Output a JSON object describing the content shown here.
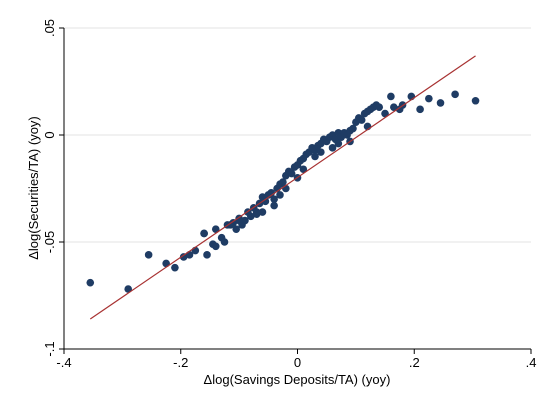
{
  "chart_data": {
    "type": "scatter",
    "xlabel": "Δlog(Savings Deposits/TA) (yoy)",
    "ylabel": "Δlog(Securities/TA) (yoy)",
    "xlim": [
      -0.4,
      0.4
    ],
    "ylim": [
      -0.1,
      0.05
    ],
    "x_ticks": [
      -0.4,
      -0.2,
      0,
      0.2,
      0.4
    ],
    "x_tick_labels": [
      "-.4",
      "-.2",
      "0",
      ".2",
      ".4"
    ],
    "y_ticks": [
      -0.1,
      -0.05,
      0,
      0.05
    ],
    "y_tick_labels": [
      "-.1",
      "-.05",
      "0",
      ".05"
    ],
    "grid": "horizontal",
    "colors": {
      "points": "#1f3c64",
      "fit_line": "#a83232",
      "grid": "#e3e3e3"
    },
    "fit_line": {
      "x": [
        -0.355,
        0.305
      ],
      "y": [
        -0.086,
        0.037
      ]
    },
    "series": [
      {
        "x": [
          -0.355,
          -0.29,
          -0.255,
          -0.225,
          -0.21,
          -0.195,
          -0.185,
          -0.175,
          -0.16,
          -0.155,
          -0.145,
          -0.14,
          -0.13,
          -0.125,
          -0.12,
          -0.115,
          -0.11,
          -0.105,
          -0.1,
          -0.095,
          -0.09,
          -0.085,
          -0.08,
          -0.075,
          -0.07,
          -0.065,
          -0.06,
          -0.055,
          -0.05,
          -0.045,
          -0.04,
          -0.035,
          -0.03,
          -0.025,
          -0.02,
          -0.015,
          -0.01,
          -0.005,
          0.0,
          0.005,
          0.01,
          0.015,
          0.02,
          0.025,
          0.03,
          0.035,
          0.04,
          0.045,
          0.05,
          0.055,
          0.06,
          0.065,
          0.07,
          0.075,
          0.08,
          0.085,
          0.09,
          0.095,
          0.1,
          0.105,
          0.11,
          0.115,
          0.12,
          0.125,
          0.13,
          0.135,
          0.14,
          0.15,
          0.16,
          0.165,
          0.175,
          0.18,
          0.195,
          0.21,
          0.225,
          0.245,
          0.27,
          0.305,
          -0.16,
          -0.14,
          -0.1,
          -0.07,
          -0.04,
          -0.02,
          0.0,
          0.03,
          0.06,
          0.09,
          0.12,
          -0.06,
          -0.03,
          0.01,
          0.04,
          0.07
        ],
        "y": [
          -0.069,
          -0.072,
          -0.056,
          -0.06,
          -0.062,
          -0.057,
          -0.056,
          -0.054,
          -0.046,
          -0.056,
          -0.051,
          -0.044,
          -0.048,
          -0.05,
          -0.042,
          -0.042,
          -0.041,
          -0.044,
          -0.039,
          -0.042,
          -0.04,
          -0.036,
          -0.038,
          -0.034,
          -0.036,
          -0.032,
          -0.029,
          -0.031,
          -0.028,
          -0.027,
          -0.03,
          -0.025,
          -0.023,
          -0.022,
          -0.019,
          -0.017,
          -0.018,
          -0.015,
          -0.014,
          -0.012,
          -0.011,
          -0.009,
          -0.008,
          -0.006,
          -0.007,
          -0.005,
          -0.004,
          -0.002,
          -0.003,
          -0.001,
          0.0,
          -0.002,
          0.001,
          -0.001,
          0.001,
          0.0,
          0.002,
          0.003,
          0.006,
          0.008,
          0.007,
          0.01,
          0.011,
          0.012,
          0.013,
          0.014,
          0.013,
          0.01,
          0.018,
          0.013,
          0.012,
          0.014,
          0.018,
          0.012,
          0.017,
          0.015,
          0.019,
          0.016,
          -0.046,
          -0.052,
          -0.04,
          -0.037,
          -0.033,
          -0.025,
          -0.02,
          -0.01,
          -0.006,
          -0.003,
          0.004,
          -0.036,
          -0.028,
          -0.016,
          -0.008,
          -0.004
        ]
      }
    ]
  }
}
